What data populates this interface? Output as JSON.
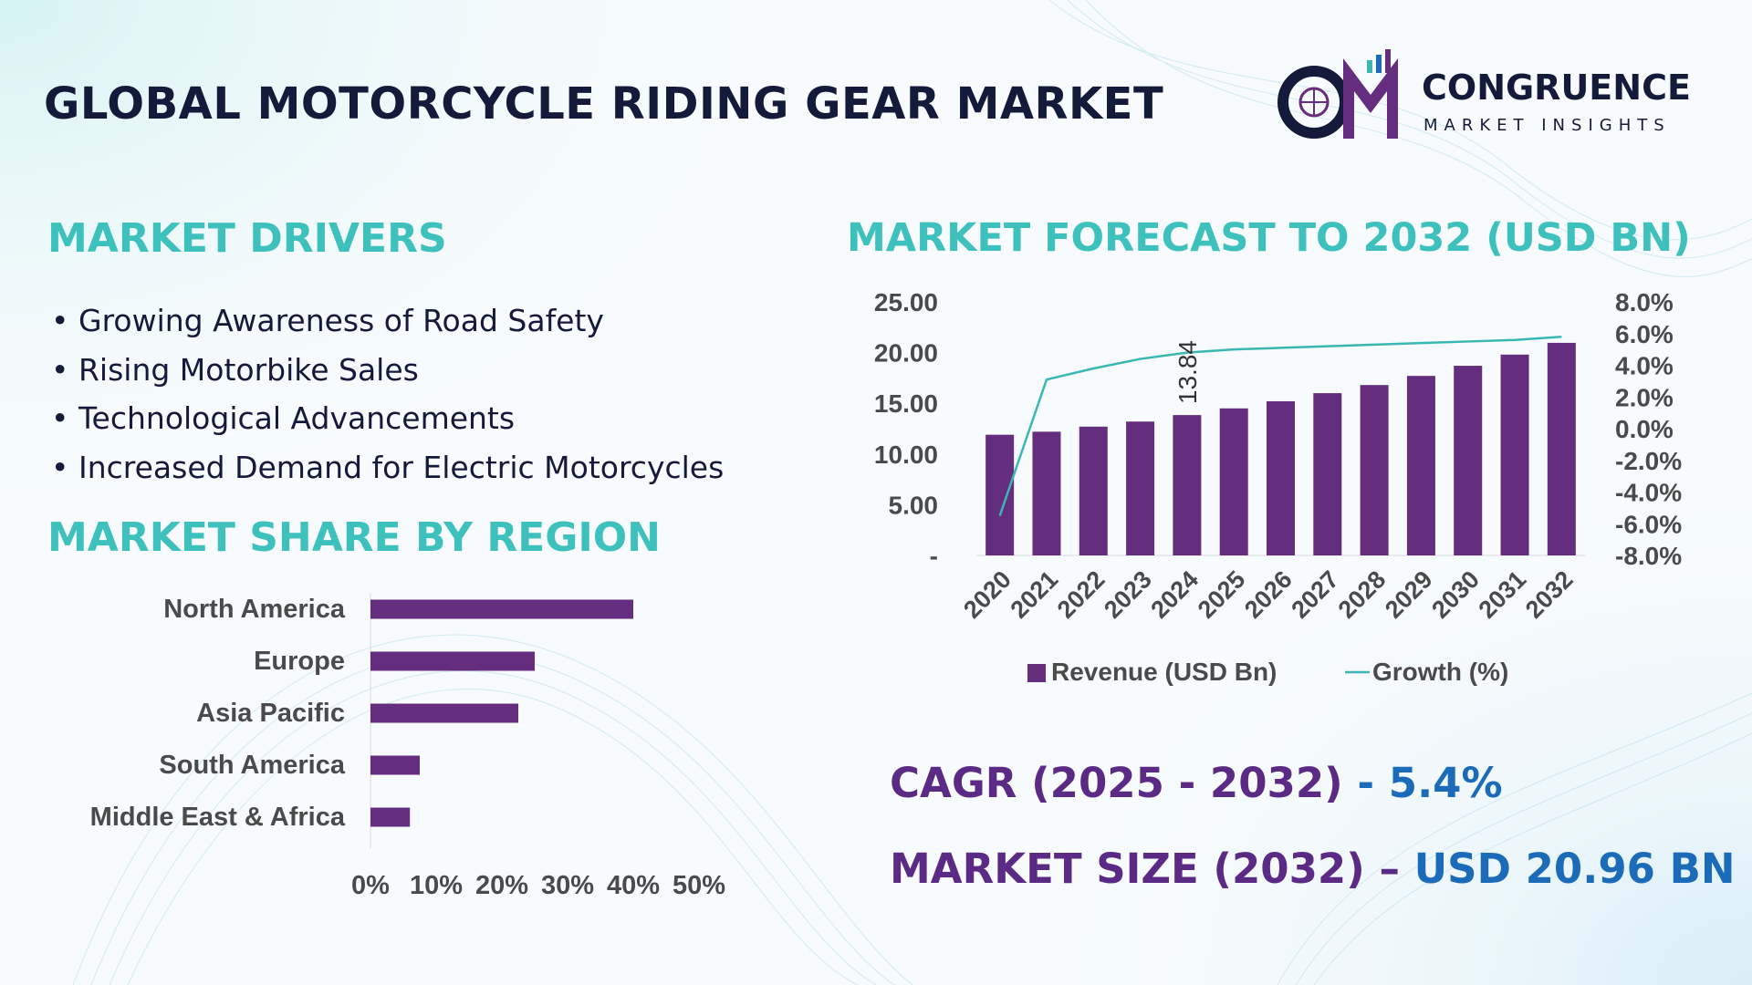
{
  "header": {
    "title": "GLOBAL MOTORCYCLE RIDING GEAR MARKET",
    "logo_initials": "CM",
    "logo_name": "CONGRUENCE",
    "logo_tagline": "MARKET INSIGHTS"
  },
  "drivers": {
    "title": "MARKET DRIVERS",
    "items": [
      "Growing Awareness of Road Safety",
      "Rising Motorbike Sales",
      "Technological Advancements",
      "Increased Demand for Electric Motorcycles"
    ]
  },
  "region": {
    "title": "MARKET SHARE BY REGION"
  },
  "forecast": {
    "title": "MARKET FORECAST TO 2032 (USD BN)"
  },
  "kpis": {
    "cagr_label": "CAGR (2025 - 2032)",
    "cagr_sep": " - ",
    "cagr_value": "5.4%",
    "size_label": "MARKET SIZE (2032)",
    "size_sep": " – ",
    "size_value": "USD 20.96 BN"
  },
  "colors": {
    "bar": "#642d7d",
    "line": "#3ab7b3",
    "heading": "#3ec1bd",
    "title": "#131a3a"
  },
  "chart_data": [
    {
      "type": "bar",
      "orientation": "horizontal",
      "categories": [
        "North America",
        "Europe",
        "Asia Pacific",
        "South America",
        "Middle East & Africa"
      ],
      "values": [
        40,
        25,
        22.5,
        7.5,
        6
      ],
      "x_ticks": [
        "0%",
        "10%",
        "20%",
        "30%",
        "40%",
        "50%"
      ],
      "xlim": [
        0,
        50
      ],
      "grid": false
    },
    {
      "type": "bar",
      "categories": [
        "2020",
        "2021",
        "2022",
        "2023",
        "2024",
        "2025",
        "2026",
        "2027",
        "2028",
        "2029",
        "2030",
        "2031",
        "2032"
      ],
      "series": [
        {
          "name": "Revenue (USD Bn)",
          "axis": "left",
          "values": [
            11.9,
            12.2,
            12.7,
            13.2,
            13.84,
            14.5,
            15.2,
            16.0,
            16.8,
            17.7,
            18.7,
            19.8,
            20.96
          ]
        },
        {
          "name": "Growth (%)",
          "type": "line",
          "axis": "right",
          "values": [
            -5.5,
            3.1,
            3.8,
            4.4,
            4.8,
            5.0,
            5.1,
            5.2,
            5.3,
            5.4,
            5.5,
            5.6,
            5.8
          ]
        }
      ],
      "data_labels": [
        {
          "category": "2024",
          "text": "13.84"
        }
      ],
      "y_ticks_left": [
        "-",
        "5.00",
        "10.00",
        "15.00",
        "20.00",
        "25.00"
      ],
      "ylim_left": [
        0,
        25
      ],
      "y_ticks_right": [
        "-8.0%",
        "-6.0%",
        "-4.0%",
        "-2.0%",
        "0.0%",
        "2.0%",
        "4.0%",
        "6.0%",
        "8.0%"
      ],
      "ylim_right": [
        -8,
        8
      ],
      "legend_position": "bottom",
      "grid": false
    }
  ]
}
